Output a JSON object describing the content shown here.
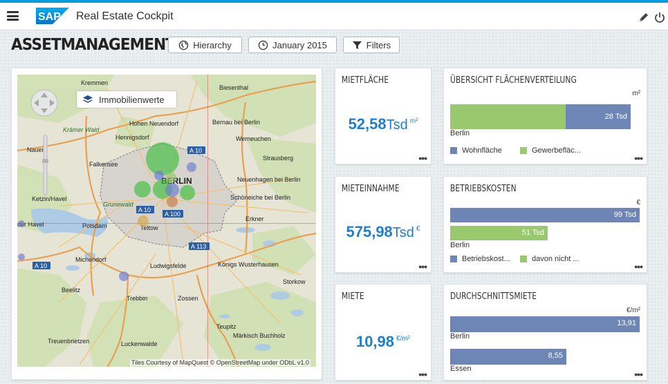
{
  "header": {
    "app_title": "Real Estate Cockpit",
    "logo_text": "SAP"
  },
  "page": {
    "title": "ASSETMANAGEMENT"
  },
  "toolbar": {
    "hierarchy": "Hierarchy",
    "date": "January 2015",
    "filters": "Filters"
  },
  "map": {
    "layer_button": "Immobilienwerte",
    "credit": "Tiles Courtesy of MapQuest © OpenStreetMap under ODbL v1.0",
    "labels": [
      "Biesenthal",
      "Kremmen",
      "Hohen Neuendorf",
      "Bernau bei Berlin",
      "Hennigsdorf",
      "Werneuchen",
      "Krämer Wald",
      "Nauen",
      "Strausberg",
      "Falkensee",
      "BERLIN",
      "Neuenhagen bei Berlin",
      "Ketzin/Havel",
      "Schöneiche bei Berlin",
      "Grunewald",
      "der Havel",
      "Potsdam",
      "Teltow",
      "Erkner",
      "Michendorf",
      "Ludwigsfelde",
      "Königs Wusterhausen",
      "Storkow",
      "Beelitz",
      "Trebbin",
      "Zossen",
      "Teupitz",
      "Märkisch Buchholz",
      "Treuenbrietzen",
      "Luckenwalde"
    ],
    "road_labels": [
      "A 10",
      "A 10",
      "A 100",
      "A 113",
      "A 10"
    ]
  },
  "tiles": {
    "mietflaeche": {
      "title": "MIETFLÄCHE",
      "value": "52,58",
      "scale": "Tsd",
      "unit": "m²"
    },
    "mieteinnahme": {
      "title": "MIETEINNAHME",
      "value": "575,98",
      "scale": "Tsd",
      "unit": "€"
    },
    "miete": {
      "title": "MIETE",
      "value": "10,98",
      "scale": "",
      "unit": "€/m²"
    },
    "flaechenverteilung": {
      "title": "ÜBERSICHT FLÄCHENVERTEILUNG",
      "unit": "m²",
      "category": "Berlin",
      "bar_label": "28 Tsd",
      "legend": [
        "Wohnfläche",
        "Gewerbefläc..."
      ],
      "colors": {
        "a": "#6e86b5",
        "b": "#9ac86e"
      }
    },
    "betriebskosten": {
      "title": "BETRIEBSKOSTEN",
      "unit": "€",
      "category": "Berlin",
      "bar1": "99 Tsd",
      "bar2": "51 Tsd",
      "legend": [
        "Betriebskost...",
        "davon nicht ..."
      ]
    },
    "durchschnittsmiete": {
      "title": "DURCHSCHNITTSMIETE",
      "unit": "€/m²",
      "rows": [
        {
          "label": "Berlin",
          "value": "13,91"
        },
        {
          "label": "Essen",
          "value": "8,55"
        }
      ]
    },
    "more": "•••"
  },
  "chart_data": [
    {
      "type": "bar",
      "title": "ÜBERSICHT FLÄCHENVERTEILUNG",
      "categories": [
        "Berlin"
      ],
      "series": [
        {
          "name": "Wohnfläche",
          "values": [
            28
          ]
        },
        {
          "name": "Gewerbefläc...",
          "values": [
            56
          ]
        }
      ],
      "stacked": true,
      "unit": "Tsd m²"
    },
    {
      "type": "bar",
      "title": "BETRIEBSKOSTEN",
      "categories": [
        "Berlin"
      ],
      "series": [
        {
          "name": "Betriebskost...",
          "values": [
            99
          ]
        },
        {
          "name": "davon nicht ...",
          "values": [
            51
          ]
        }
      ],
      "unit": "Tsd €"
    },
    {
      "type": "bar",
      "title": "DURCHSCHNITTSMIETE",
      "categories": [
        "Berlin",
        "Essen"
      ],
      "values": [
        13.91,
        8.55
      ],
      "unit": "€/m²"
    }
  ]
}
